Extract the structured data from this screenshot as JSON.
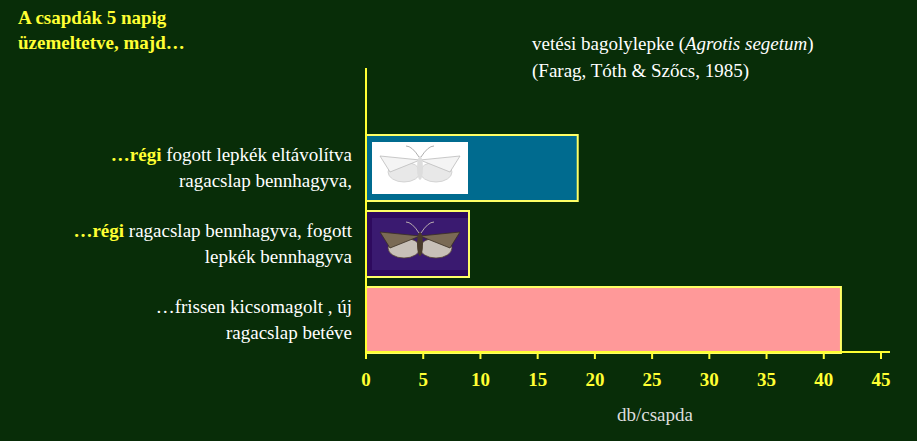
{
  "chart_data": {
    "type": "bar",
    "orientation": "horizontal",
    "title": "A csapdák 5 napig\nüzemeltetve, majd…",
    "subtitle": "vetési bagolylepke (Agrotis segetum)\n(Farag, Tóth & Szőcs, 1985)",
    "categories": [
      "…régi fogott lepkék eltávolítva\nragacslap bennhagyva,",
      "…régi ragacslap bennhagyva, fogott\nlepkék bennhagyva",
      "…frissen kicsomagolt , új\nragacslap betéve"
    ],
    "values": [
      18.5,
      9,
      41.5
    ],
    "colors": [
      "#006b8f",
      "#2e0a5e",
      "#ff9999"
    ],
    "x_label": "db/csapda",
    "xlim": [
      0,
      45
    ],
    "xticks": [
      0,
      5,
      10,
      15,
      20,
      25,
      30,
      35,
      40,
      45
    ],
    "grid": false
  }
}
